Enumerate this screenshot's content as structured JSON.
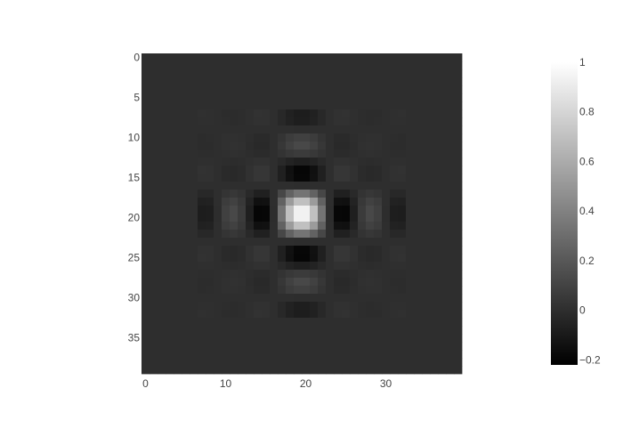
{
  "chart_data": {
    "type": "heatmap",
    "colorscale": "greys-reversed",
    "background_color": "#ffffff",
    "grid_size": [
      40,
      40
    ],
    "x_range": [
      -0.5,
      39.5
    ],
    "y_range": [
      39.5,
      -0.5
    ],
    "x_ticks": [
      0,
      10,
      20,
      30
    ],
    "y_ticks": [
      0,
      5,
      10,
      15,
      20,
      25,
      30,
      35
    ],
    "colorbar": {
      "range": [
        -0.22,
        1.0
      ],
      "ticks": [
        1,
        0.8,
        0.6,
        0.4,
        0.2,
        0,
        -0.2
      ],
      "tick_labels": [
        "1",
        "0.8",
        "0.6",
        "0.4",
        "0.2",
        "0",
        "−0.2"
      ]
    },
    "field": {
      "description_of_values": "z[i][j] = a(i-c)*a(j-c) for i,j in 7..32, else 0, where a(d)=sinc-like kernel",
      "center": 19.5,
      "active_start": 7,
      "active_end": 32,
      "kernel_scale": 0.9
    }
  }
}
